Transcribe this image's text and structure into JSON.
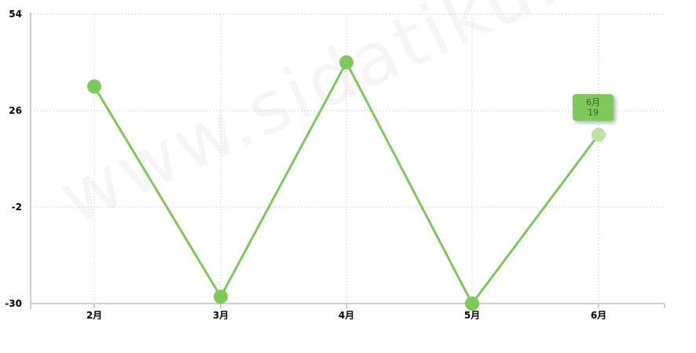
{
  "chart_data": {
    "type": "line",
    "categories": [
      "2月",
      "3月",
      "4月",
      "5月",
      "6月"
    ],
    "series": [
      {
        "values": [
          33,
          -28,
          40,
          -30,
          19
        ]
      }
    ],
    "y_ticks": [
      54,
      26,
      -2,
      -30
    ],
    "ylim": [
      -30,
      54
    ],
    "grid": true,
    "highlighted_index": 4
  },
  "tooltip": {
    "category": "6月",
    "value": "19"
  },
  "watermark": "www.sidatiku.com",
  "colors": {
    "series": "#7dc95a",
    "highlight": "#b7e39f",
    "grid": "#d8d8d8",
    "axis": "#cfcfcf"
  }
}
